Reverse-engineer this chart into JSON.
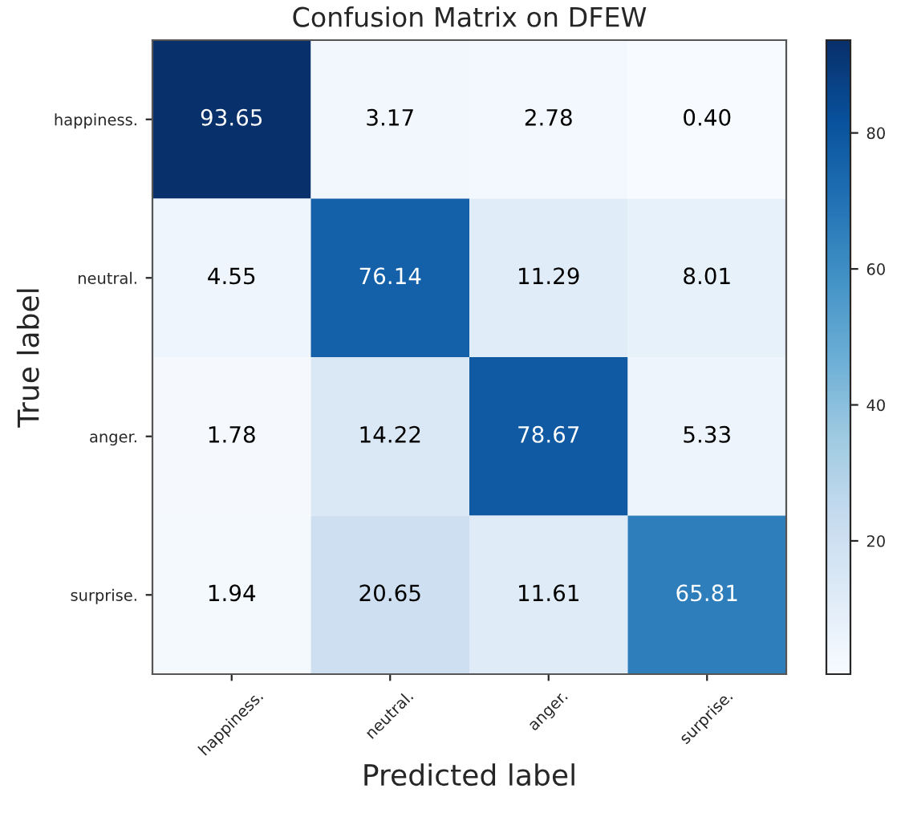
{
  "chart_data": {
    "type": "heatmap",
    "title": "Confusion Matrix on DFEW",
    "xlabel": "Predicted label",
    "ylabel": "True label",
    "categories": [
      "happiness.",
      "neutral.",
      "anger.",
      "surprise."
    ],
    "y_categories": [
      "happiness.",
      "neutral.",
      "anger.",
      "surprise."
    ],
    "cells": [
      [
        93.65,
        3.17,
        2.78,
        0.4
      ],
      [
        4.55,
        76.14,
        11.29,
        8.01
      ],
      [
        1.78,
        14.22,
        78.67,
        5.33
      ],
      [
        1.94,
        20.65,
        11.61,
        65.81
      ]
    ],
    "cell_labels": [
      [
        "93.65",
        "3.17",
        "2.78",
        "0.40"
      ],
      [
        "4.55",
        "76.14",
        "11.29",
        "8.01"
      ],
      [
        "1.78",
        "14.22",
        "78.67",
        "5.33"
      ],
      [
        "1.94",
        "20.65",
        "11.61",
        "65.81"
      ]
    ],
    "clim": [
      0.4,
      93.65
    ],
    "cticks": [
      20,
      40,
      60,
      80
    ]
  }
}
